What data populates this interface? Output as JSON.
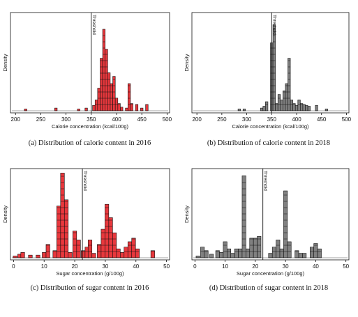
{
  "chart_data": [
    {
      "type": "bar",
      "id": "a",
      "caption": "(a) Distribution of calorie content in 2016",
      "xlabel": "Calorie concentration (kcal/100g)",
      "ylabel": "Density",
      "xlim": [
        190,
        505
      ],
      "xticks": [
        200,
        250,
        300,
        350,
        400,
        450,
        500
      ],
      "threshold": {
        "x": 350,
        "label": "Threshold"
      },
      "color": "#e8383d",
      "bin_width": 5,
      "bars": [
        {
          "x": 220,
          "h": 0.02
        },
        {
          "x": 280,
          "h": 0.03
        },
        {
          "x": 325,
          "h": 0.02
        },
        {
          "x": 340,
          "h": 0.03
        },
        {
          "x": 355,
          "h": 0.06
        },
        {
          "x": 360,
          "h": 0.12
        },
        {
          "x": 365,
          "h": 0.25
        },
        {
          "x": 370,
          "h": 0.58
        },
        {
          "x": 375,
          "h": 0.9
        },
        {
          "x": 380,
          "h": 0.68
        },
        {
          "x": 385,
          "h": 0.42
        },
        {
          "x": 390,
          "h": 0.3
        },
        {
          "x": 395,
          "h": 0.38
        },
        {
          "x": 400,
          "h": 0.14
        },
        {
          "x": 405,
          "h": 0.08
        },
        {
          "x": 410,
          "h": 0.04
        },
        {
          "x": 420,
          "h": 0.03
        },
        {
          "x": 425,
          "h": 0.3
        },
        {
          "x": 430,
          "h": 0.08
        },
        {
          "x": 440,
          "h": 0.07
        },
        {
          "x": 450,
          "h": 0.03
        },
        {
          "x": 460,
          "h": 0.07
        }
      ]
    },
    {
      "type": "bar",
      "id": "b",
      "caption": "(b) Distribution of calorie content in 2018",
      "xlabel": "Calorie concentration (kcal/100g)",
      "ylabel": "Density",
      "xlim": [
        190,
        505
      ],
      "xticks": [
        200,
        250,
        300,
        350,
        400,
        450,
        500
      ],
      "threshold": {
        "x": 350,
        "label": "Threshold"
      },
      "color": "#808080",
      "bin_width": 5,
      "bars": [
        {
          "x": 285,
          "h": 0.02
        },
        {
          "x": 295,
          "h": 0.02
        },
        {
          "x": 330,
          "h": 0.03
        },
        {
          "x": 335,
          "h": 0.05
        },
        {
          "x": 340,
          "h": 0.1
        },
        {
          "x": 350,
          "h": 0.75
        },
        {
          "x": 355,
          "h": 0.95
        },
        {
          "x": 360,
          "h": 0.08
        },
        {
          "x": 365,
          "h": 0.18
        },
        {
          "x": 370,
          "h": 0.12
        },
        {
          "x": 375,
          "h": 0.22
        },
        {
          "x": 380,
          "h": 0.3
        },
        {
          "x": 385,
          "h": 0.58
        },
        {
          "x": 390,
          "h": 0.12
        },
        {
          "x": 395,
          "h": 0.08
        },
        {
          "x": 400,
          "h": 0.06
        },
        {
          "x": 405,
          "h": 0.12
        },
        {
          "x": 410,
          "h": 0.08
        },
        {
          "x": 415,
          "h": 0.07
        },
        {
          "x": 420,
          "h": 0.06
        },
        {
          "x": 425,
          "h": 0.05
        },
        {
          "x": 440,
          "h": 0.06
        },
        {
          "x": 460,
          "h": 0.02
        }
      ]
    },
    {
      "type": "bar",
      "id": "c",
      "caption": "(c) Distribution of sugar content in 2016",
      "xlabel": "Sugar concentration (g/100g)",
      "ylabel": "Density",
      "xlim": [
        -1,
        51
      ],
      "xticks": [
        0,
        10,
        20,
        30,
        40,
        50
      ],
      "threshold": {
        "x": 22.5,
        "label": "Threshold"
      },
      "color": "#e8383d",
      "bin_width": 1.25,
      "bars": [
        {
          "x": 0.5,
          "h": 0.02
        },
        {
          "x": 2.0,
          "h": 0.04
        },
        {
          "x": 3.0,
          "h": 0.06
        },
        {
          "x": 5.5,
          "h": 0.03
        },
        {
          "x": 8.0,
          "h": 0.03
        },
        {
          "x": 10.0,
          "h": 0.06
        },
        {
          "x": 11.25,
          "h": 0.15
        },
        {
          "x": 13.5,
          "h": 0.08
        },
        {
          "x": 14.75,
          "h": 0.58
        },
        {
          "x": 16.0,
          "h": 0.95
        },
        {
          "x": 17.25,
          "h": 0.65
        },
        {
          "x": 18.5,
          "h": 0.06
        },
        {
          "x": 20.0,
          "h": 0.3
        },
        {
          "x": 21.25,
          "h": 0.2
        },
        {
          "x": 22.75,
          "h": 0.08
        },
        {
          "x": 24.0,
          "h": 0.12
        },
        {
          "x": 25.0,
          "h": 0.2
        },
        {
          "x": 26.25,
          "h": 0.05
        },
        {
          "x": 28.0,
          "h": 0.15
        },
        {
          "x": 29.25,
          "h": 0.32
        },
        {
          "x": 30.5,
          "h": 0.6
        },
        {
          "x": 31.75,
          "h": 0.45
        },
        {
          "x": 33.0,
          "h": 0.28
        },
        {
          "x": 34.25,
          "h": 0.1
        },
        {
          "x": 35.5,
          "h": 0.06
        },
        {
          "x": 36.75,
          "h": 0.12
        },
        {
          "x": 38.0,
          "h": 0.18
        },
        {
          "x": 39.25,
          "h": 0.22
        },
        {
          "x": 40.5,
          "h": 0.1
        },
        {
          "x": 45.5,
          "h": 0.08
        }
      ]
    },
    {
      "type": "bar",
      "id": "d",
      "caption": "(d) Distribution of sugar content in 2018",
      "xlabel": "Sugar concentration (g/100g)",
      "ylabel": "Density",
      "xlim": [
        -1,
        51
      ],
      "xticks": [
        0,
        10,
        20,
        30,
        40,
        50
      ],
      "threshold": {
        "x": 22.5,
        "label": "Threshold"
      },
      "color": "#808080",
      "bin_width": 1.25,
      "bars": [
        {
          "x": 1.0,
          "h": 0.02
        },
        {
          "x": 2.5,
          "h": 0.12
        },
        {
          "x": 3.75,
          "h": 0.08
        },
        {
          "x": 5.5,
          "h": 0.04
        },
        {
          "x": 7.5,
          "h": 0.08
        },
        {
          "x": 8.75,
          "h": 0.06
        },
        {
          "x": 10.0,
          "h": 0.18
        },
        {
          "x": 11.25,
          "h": 0.1
        },
        {
          "x": 12.5,
          "h": 0.05
        },
        {
          "x": 13.75,
          "h": 0.1
        },
        {
          "x": 15.0,
          "h": 0.1
        },
        {
          "x": 16.25,
          "h": 0.92
        },
        {
          "x": 17.5,
          "h": 0.1
        },
        {
          "x": 18.75,
          "h": 0.22
        },
        {
          "x": 20.0,
          "h": 0.22
        },
        {
          "x": 21.25,
          "h": 0.24
        },
        {
          "x": 25.0,
          "h": 0.05
        },
        {
          "x": 26.25,
          "h": 0.12
        },
        {
          "x": 27.5,
          "h": 0.2
        },
        {
          "x": 28.75,
          "h": 0.1
        },
        {
          "x": 30.0,
          "h": 0.75
        },
        {
          "x": 31.25,
          "h": 0.18
        },
        {
          "x": 33.75,
          "h": 0.08
        },
        {
          "x": 35.0,
          "h": 0.05
        },
        {
          "x": 36.25,
          "h": 0.05
        },
        {
          "x": 38.75,
          "h": 0.12
        },
        {
          "x": 40.0,
          "h": 0.16
        },
        {
          "x": 41.25,
          "h": 0.1
        }
      ]
    }
  ]
}
